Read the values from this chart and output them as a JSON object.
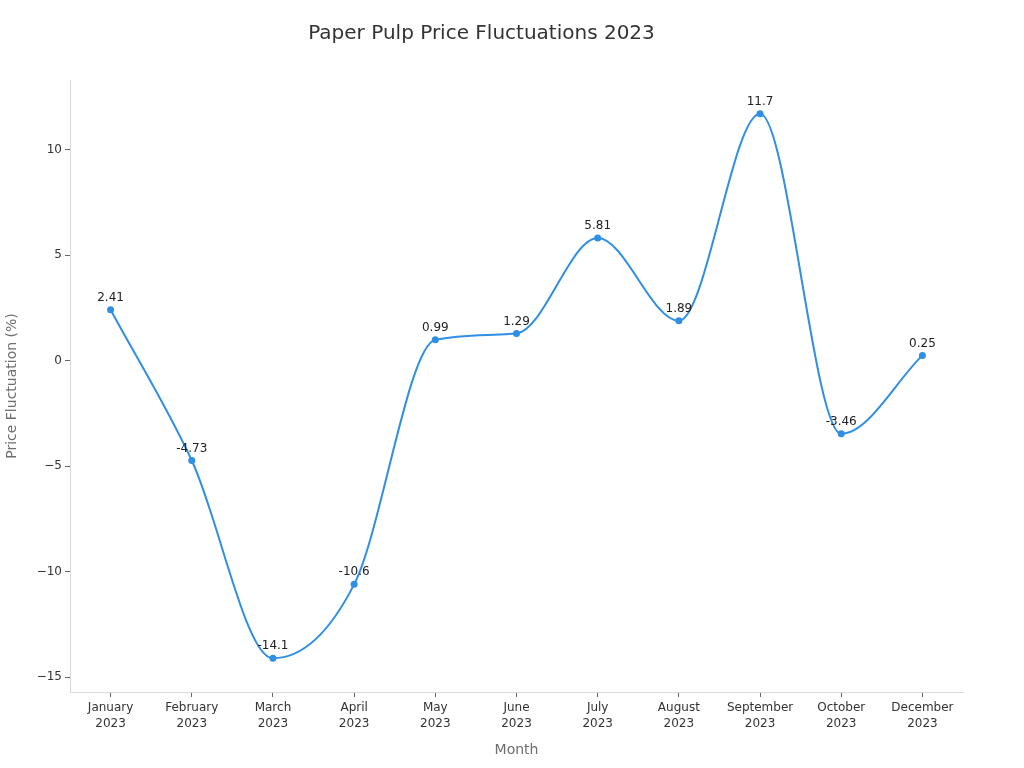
{
  "chart_data": {
    "type": "line",
    "title": "Paper Pulp Price Fluctuations 2023",
    "xlabel": "Month",
    "ylabel": "Price Fluctuation (%)",
    "categories": [
      "January 2023",
      "February 2023",
      "March 2023",
      "April 2023",
      "May 2023",
      "June 2023",
      "July 2023",
      "August 2023",
      "September 2023",
      "October 2023",
      "December 2023"
    ],
    "values": [
      2.41,
      -4.73,
      -14.1,
      -10.6,
      0.99,
      1.29,
      5.81,
      1.89,
      11.7,
      -3.46,
      0.25
    ],
    "color": "#2f8fe5",
    "ylim": [
      -15.7,
      13.3
    ],
    "yticks": [
      {
        "value": -15,
        "label": "−15"
      },
      {
        "value": -10,
        "label": "−10"
      },
      {
        "value": -5,
        "label": "−5"
      },
      0,
      5,
      10
    ],
    "data_labels": true,
    "marker": "circle",
    "line_style": "solid"
  }
}
